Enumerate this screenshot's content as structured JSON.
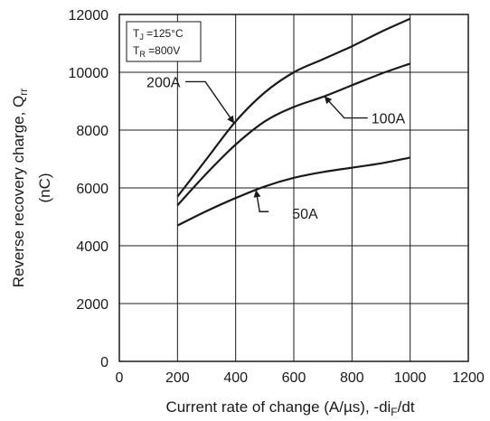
{
  "chart_data": {
    "type": "line",
    "xlabel": "Current rate of change (A/µs), -di",
    "xlabel_sub": "F",
    "xlabel_end": "/dt",
    "ylabel": "Reverse recovery charge, Q",
    "ylabel_sub": "rr",
    "ylabel_unit": "(nC)",
    "xlim": [
      0,
      1200
    ],
    "ylim": [
      0,
      12000
    ],
    "xticks": [
      0,
      200,
      400,
      600,
      800,
      1000,
      1200
    ],
    "yticks": [
      0,
      2000,
      4000,
      6000,
      8000,
      10000,
      12000
    ],
    "grid": true,
    "conditions": [
      {
        "main": "T",
        "sub": "J",
        "rest": " =125°C"
      },
      {
        "main": "T",
        "sub": "R",
        "rest": " =800V"
      }
    ],
    "series": [
      {
        "name": "200A",
        "x": [
          200,
          300,
          400,
          500,
          600,
          700,
          800,
          900,
          1000
        ],
        "y": [
          5700,
          7000,
          8300,
          9300,
          10000,
          10450,
          10900,
          11400,
          11850
        ]
      },
      {
        "name": "100A",
        "x": [
          200,
          300,
          400,
          500,
          600,
          700,
          800,
          900,
          1000
        ],
        "y": [
          5400,
          6500,
          7500,
          8300,
          8800,
          9150,
          9550,
          9950,
          10300
        ]
      },
      {
        "name": "50A",
        "x": [
          200,
          300,
          400,
          500,
          600,
          700,
          800,
          900,
          1000
        ],
        "y": [
          4700,
          5200,
          5650,
          6050,
          6350,
          6550,
          6700,
          6850,
          7050
        ]
      }
    ],
    "annotations": [
      {
        "text": "200A",
        "series": "200A",
        "at_x": 395
      },
      {
        "text": "100A",
        "series": "100A",
        "at_x": 705
      },
      {
        "text": "50A",
        "series": "50A",
        "at_x": 470
      }
    ]
  }
}
